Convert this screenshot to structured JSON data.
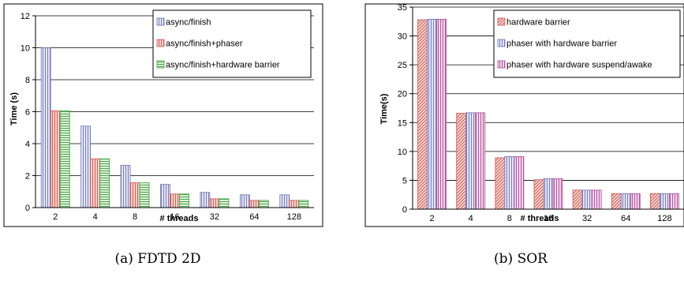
{
  "colors": {
    "blue_fill": "#e2e6f6",
    "blue_line": "#7073b8",
    "red_fill": "#f6d4cc",
    "red_line": "#d05050",
    "green_fill": "#dff0dc",
    "green_line": "#3aa03a",
    "pink_fill": "#f3d6ea",
    "pink_line": "#b04a9a"
  },
  "chart_data": [
    {
      "type": "bar",
      "caption": "(a) FDTD 2D",
      "xlabel": "# threads",
      "ylabel": "Time (s)",
      "ylim": [
        0,
        12
      ],
      "yticks": [
        "0",
        "2",
        "4",
        "6",
        "8",
        "10",
        "12"
      ],
      "grid": true,
      "legend_position": "top-right",
      "categories": [
        "2",
        "4",
        "8",
        "16",
        "32",
        "64",
        "128"
      ],
      "series": [
        {
          "name": "async/finish",
          "pattern": "vertical",
          "color": "blue",
          "values": [
            10.0,
            5.1,
            2.65,
            1.45,
            0.95,
            0.8,
            0.8
          ]
        },
        {
          "name": "async/finish+phaser",
          "pattern": "vertical",
          "color": "red",
          "values": [
            6.05,
            3.05,
            1.55,
            0.85,
            0.55,
            0.45,
            0.45
          ]
        },
        {
          "name": "async/finish+hardware barrier",
          "pattern": "horizontal",
          "color": "green",
          "values": [
            6.05,
            3.05,
            1.55,
            0.85,
            0.55,
            0.45,
            0.45
          ]
        }
      ]
    },
    {
      "type": "bar",
      "caption": "(b) SOR",
      "xlabel": "# threads",
      "ylabel": "Time(s)",
      "ylim": [
        0,
        35
      ],
      "yticks": [
        "0",
        "5",
        "10",
        "15",
        "20",
        "25",
        "30",
        "35"
      ],
      "grid": true,
      "legend_position": "top-right",
      "categories": [
        "2",
        "4",
        "8",
        "16",
        "32",
        "64",
        "128"
      ],
      "series": [
        {
          "name": "hardware barrier",
          "pattern": "diagonal",
          "color": "red",
          "values": [
            32.8,
            16.6,
            8.9,
            5.1,
            3.3,
            2.7,
            2.7
          ]
        },
        {
          "name": "phaser with hardware barrier",
          "pattern": "vertical",
          "color": "blue",
          "values": [
            32.9,
            16.7,
            9.1,
            5.3,
            3.3,
            2.7,
            2.7
          ]
        },
        {
          "name": "phaser with hardware suspend/awake",
          "pattern": "vertical",
          "color": "pink",
          "values": [
            32.9,
            16.7,
            9.1,
            5.3,
            3.3,
            2.7,
            2.7
          ]
        }
      ]
    }
  ]
}
